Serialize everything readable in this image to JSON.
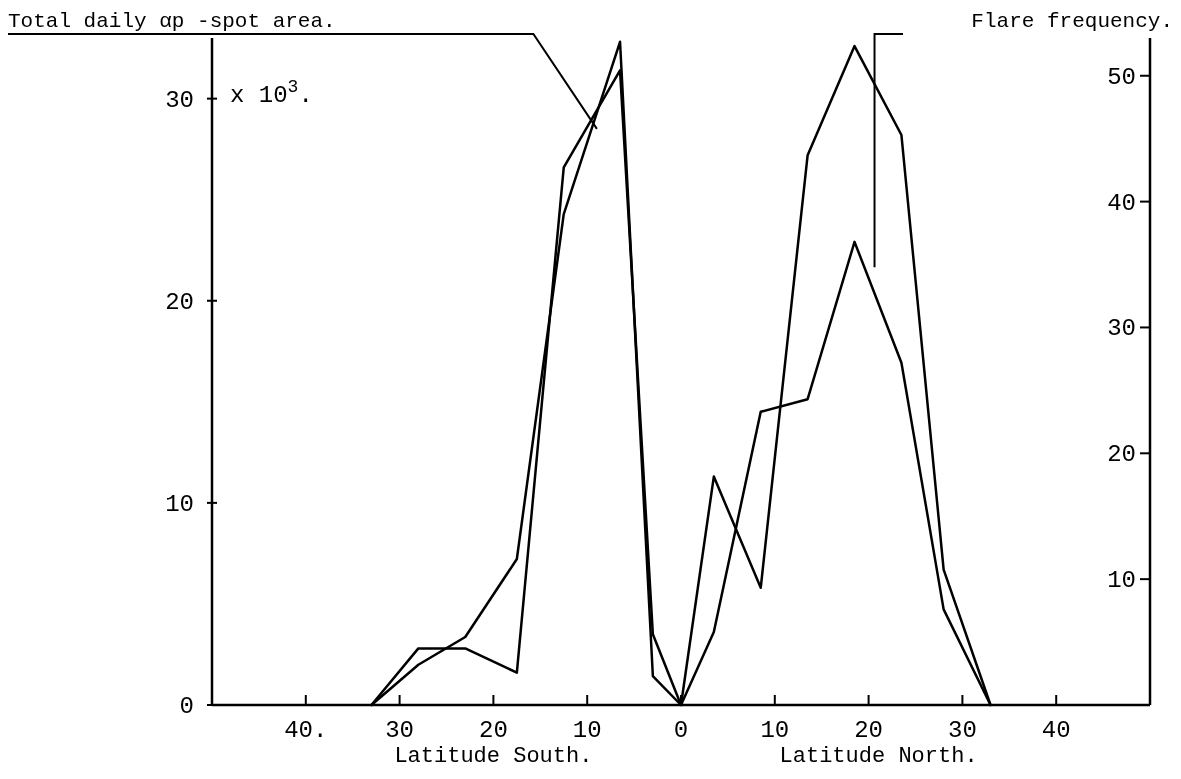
{
  "chart_data": {
    "type": "line",
    "ylabel": "Total daily αp -spot area.",
    "y2label": "Flare frequency.",
    "annotations": [
      "x 10$^{3}$.",
      "Latitude South.",
      "Latitude North."
    ],
    "x": [
      -33,
      -28,
      -23,
      -17.5,
      -12.5,
      -6.5,
      -3,
      0,
      3.5,
      8.5,
      13.5,
      18.5,
      23.5,
      28,
      33
    ],
    "xlim": [
      -50,
      50
    ],
    "xticks": [
      {
        "value": -40,
        "label": "40."
      },
      {
        "value": -30,
        "label": "30"
      },
      {
        "value": -20,
        "label": "20"
      },
      {
        "value": -10,
        "label": "10"
      },
      0,
      10,
      20,
      30,
      40
    ],
    "ylim": [
      0,
      33
    ],
    "yticks": [
      0,
      10,
      20,
      30
    ],
    "y2lim": [
      0,
      53
    ],
    "y2ticks": [
      {
        "value": 10,
        "label": "10"
      },
      {
        "value": 20,
        "label": "20"
      },
      {
        "value": 30,
        "label": "30"
      },
      {
        "value": 40,
        "label": "40"
      },
      {
        "value": 50,
        "label": "50"
      }
    ],
    "series": [
      {
        "color": "#000000",
        "values": [
          0,
          2.8,
          2.8,
          1.6,
          26.6,
          31.4,
          3.5,
          0,
          11.3,
          5.8,
          27.2,
          32.6,
          28.2,
          6.7,
          0
        ]
      },
      {
        "color": "#000000",
        "axis": "y2",
        "values": [
          0,
          3.2,
          5.4,
          11.6,
          39,
          52.7,
          2.3,
          0,
          5.8,
          23.3,
          24.3,
          36.8,
          27.2,
          7.6,
          0
        ]
      }
    ],
    "marker": "none",
    "line_style": "solid",
    "grid": false
  }
}
